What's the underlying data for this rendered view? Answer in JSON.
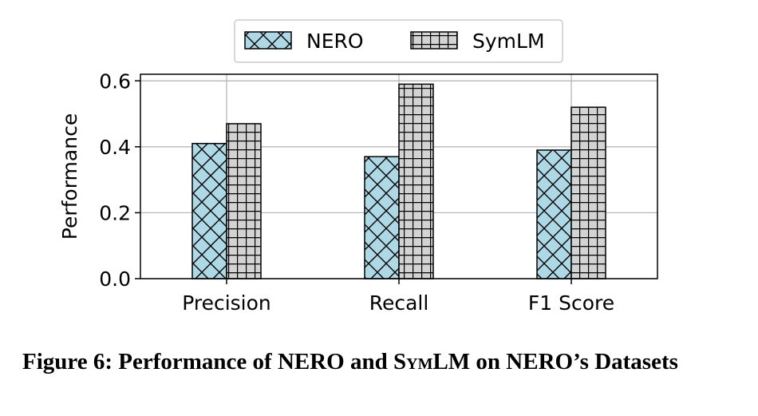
{
  "chart_data": {
    "type": "bar",
    "categories": [
      "Precision",
      "Recall",
      "F1 Score"
    ],
    "series": [
      {
        "name": "NERO",
        "values": [
          0.41,
          0.37,
          0.39
        ],
        "color": "#add8e6",
        "hatch": "crosshatch-diagonal"
      },
      {
        "name": "SymLM",
        "values": [
          0.47,
          0.59,
          0.52
        ],
        "color": "#d3d3d3",
        "hatch": "grid"
      }
    ],
    "ylabel": "Performance",
    "ylim": [
      0,
      0.62
    ],
    "yticks": [
      0.0,
      0.2,
      0.4,
      0.6
    ],
    "ytick_labels": [
      "0.0",
      "0.2",
      "0.4",
      "0.6"
    ],
    "grid": true,
    "legend_position": "top-center"
  },
  "caption": {
    "prefix": "Figure 6: Performance of NERO and ",
    "name_small_caps": "SymLM",
    "suffix": " on NERO’s Datasets"
  }
}
